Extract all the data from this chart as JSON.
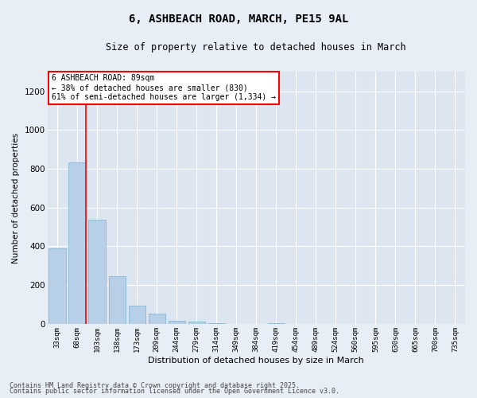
{
  "title": "6, ASHBEACH ROAD, MARCH, PE15 9AL",
  "subtitle": "Size of property relative to detached houses in March",
  "xlabel": "Distribution of detached houses by size in March",
  "ylabel": "Number of detached properties",
  "bar_color": "#b8cfe8",
  "bar_edge_color": "#7aafd4",
  "background_color": "#dde6f0",
  "grid_color": "#ffffff",
  "fig_background": "#e8eef5",
  "categories": [
    "33sqm",
    "68sqm",
    "103sqm",
    "138sqm",
    "173sqm",
    "209sqm",
    "244sqm",
    "279sqm",
    "314sqm",
    "349sqm",
    "384sqm",
    "419sqm",
    "454sqm",
    "489sqm",
    "524sqm",
    "560sqm",
    "595sqm",
    "630sqm",
    "665sqm",
    "700sqm",
    "735sqm"
  ],
  "values": [
    390,
    835,
    537,
    245,
    95,
    55,
    18,
    12,
    5,
    0,
    0,
    5,
    0,
    0,
    0,
    0,
    0,
    0,
    0,
    0,
    0
  ],
  "ylim": [
    0,
    1300
  ],
  "yticks": [
    0,
    200,
    400,
    600,
    800,
    1000,
    1200
  ],
  "annotation_title": "6 ASHBEACH ROAD: 89sqm",
  "annotation_line1": "← 38% of detached houses are smaller (830)",
  "annotation_line2": "61% of semi-detached houses are larger (1,334) →",
  "vline_x": 1.425,
  "footnote1": "Contains HM Land Registry data © Crown copyright and database right 2025.",
  "footnote2": "Contains public sector information licensed under the Open Government Licence v3.0."
}
